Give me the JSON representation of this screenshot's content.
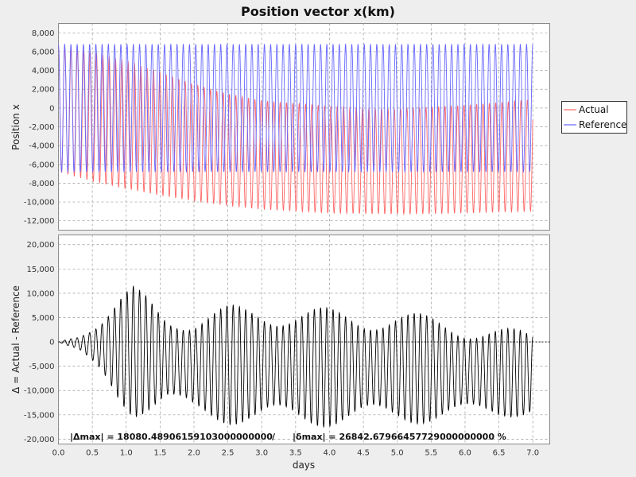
{
  "chart_data": [
    {
      "type": "line",
      "title": "Position vector x(km)",
      "xlabel": "",
      "ylabel": "Position x",
      "xlim": [
        0,
        7.25
      ],
      "ylim": [
        -13000,
        9000
      ],
      "y_ticks": [
        "8,000",
        "6,000",
        "4,000",
        "2,000",
        "0",
        "-2,000",
        "-4,000",
        "-6,000",
        "-8,000",
        "-10,000",
        "-12,000"
      ],
      "y_tick_values": [
        8000,
        6000,
        4000,
        2000,
        0,
        -2000,
        -4000,
        -6000,
        -8000,
        -10000,
        -12000
      ],
      "grid": true,
      "legend": "right",
      "series": [
        {
          "name": "Actual",
          "color": "#ff6666",
          "cycles": 76,
          "x_end": 7.0,
          "max_envelope": {
            "x": [
              0,
              0.5,
              1.0,
              1.5,
              2.0,
              2.5,
              3.0,
              4.0,
              5.0,
              6.0,
              7.0
            ],
            "y": [
              6500,
              6000,
              5000,
              3800,
              2500,
              1500,
              800,
              200,
              -100,
              300,
              900
            ]
          },
          "min_envelope": {
            "x": [
              0,
              0.5,
              1.0,
              1.5,
              2.0,
              2.5,
              3.0,
              4.0,
              5.0,
              6.0,
              7.0
            ],
            "y": [
              -6800,
              -7800,
              -8600,
              -9300,
              -9900,
              -10400,
              -10800,
              -11200,
              -11300,
              -11200,
              -11000
            ]
          }
        },
        {
          "name": "Reference",
          "color": "#6666ff",
          "cycles": 76,
          "x_end": 7.0,
          "max_envelope": {
            "x": [
              0,
              7.0
            ],
            "y": [
              6800,
              6800
            ]
          },
          "min_envelope": {
            "x": [
              0,
              7.0
            ],
            "y": [
              -6800,
              -6800
            ]
          }
        }
      ]
    },
    {
      "type": "line",
      "title": "",
      "xlabel": "days",
      "ylabel": "Δ = Actual - Reference",
      "xlim": [
        0,
        7.25
      ],
      "ylim": [
        -21000,
        22000
      ],
      "x_ticks": [
        "0.0",
        "0.5",
        "1.0",
        "1.5",
        "2.0",
        "2.5",
        "3.0",
        "3.5",
        "4.0",
        "4.5",
        "5.0",
        "5.5",
        "6.0",
        "6.5",
        "7.0"
      ],
      "x_tick_values": [
        0,
        0.5,
        1.0,
        1.5,
        2.0,
        2.5,
        3.0,
        3.5,
        4.0,
        4.5,
        5.0,
        5.5,
        6.0,
        6.5,
        7.0
      ],
      "y_ticks": [
        "20,000",
        "15,000",
        "10,000",
        "5,000",
        "0",
        "-5,000",
        "-10,000",
        "-15,000",
        "-20,000"
      ],
      "y_tick_values": [
        20000,
        15000,
        10000,
        5000,
        0,
        -5000,
        -10000,
        -15000,
        -20000
      ],
      "grid": true,
      "series": [
        {
          "name": "",
          "color": "#000000",
          "x_end": 7.0,
          "beat_cycles": 5,
          "max_envelope": {
            "x": [
              0,
              0.3,
              0.6,
              0.9,
              1.1,
              1.3,
              1.6,
              2.0,
              2.5,
              3.0,
              3.5,
              4.0,
              5.0,
              6.0,
              7.0
            ],
            "y": [
              0,
              1500,
              5000,
              9500,
              11500,
              10000,
              6500,
              6000,
              7500,
              8000,
              7500,
              7000,
              6500,
              4500,
              2000
            ]
          },
          "min_envelope": {
            "x": [
              0,
              0.3,
              0.6,
              0.9,
              1.1,
              1.3,
              1.6,
              2.0,
              2.5,
              3.0,
              3.5,
              4.0,
              5.0,
              6.0,
              7.0
            ],
            "y": [
              0,
              -2000,
              -7000,
              -13000,
              -15500,
              -15000,
              -13500,
              -16000,
              -17000,
              -17500,
              -17500,
              -17500,
              -17000,
              -16500,
              -15000
            ]
          }
        }
      ],
      "annotation": {
        "delta_max": "|Δmax| = 18080.48906159103000000000",
        "separator": "/",
        "delta_rel_max": "|δmax| = 26842.67966457729000000000 %"
      }
    }
  ]
}
